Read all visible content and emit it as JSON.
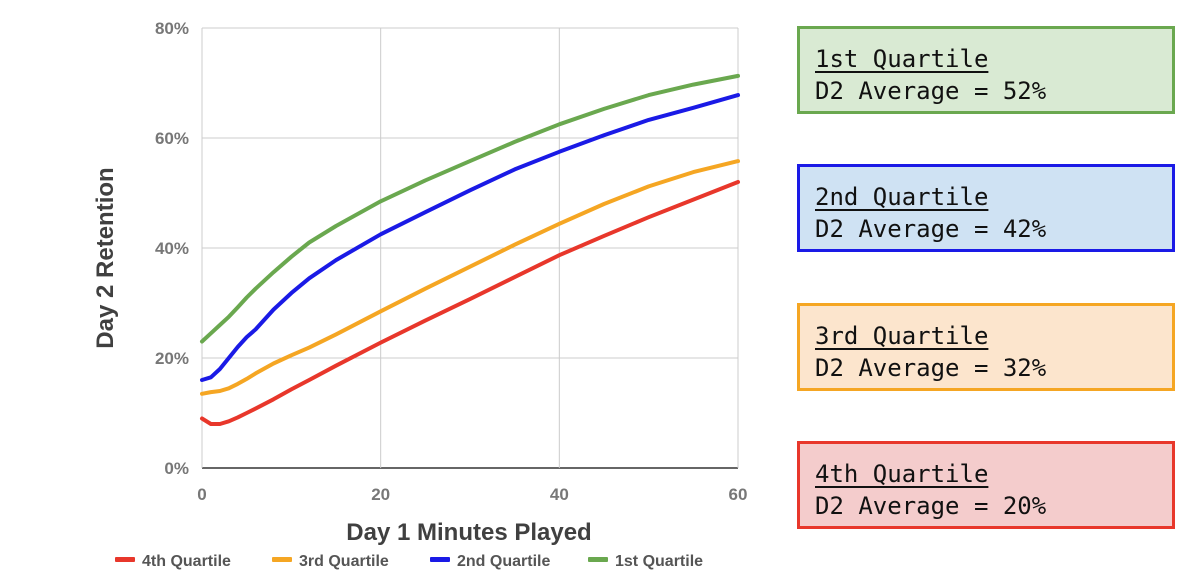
{
  "chart_data": {
    "type": "line",
    "xlabel": "Day 1 Minutes Played",
    "ylabel": "Day 2 Retention",
    "xlim": [
      0,
      60
    ],
    "ylim": [
      0,
      80
    ],
    "x_ticks": [
      "0",
      "20",
      "40",
      "60"
    ],
    "y_ticks": [
      "0%",
      "20%",
      "40%",
      "60%",
      "80%"
    ],
    "grid": true,
    "legend_position": "bottom",
    "x": [
      0,
      1,
      2,
      3,
      4,
      5,
      6,
      8,
      10,
      12,
      15,
      20,
      25,
      30,
      35,
      40,
      45,
      50,
      55,
      60
    ],
    "series": [
      {
        "name": "4th Quartile",
        "color": "#e8372b",
        "values": [
          9,
          8,
          8,
          8.5,
          9.2,
          10,
          10.8,
          12.5,
          14.3,
          16,
          18.6,
          22.8,
          26.8,
          30.7,
          34.7,
          38.7,
          42.2,
          45.6,
          48.8,
          52
        ]
      },
      {
        "name": "3rd Quartile",
        "color": "#f5a623",
        "values": [
          13.5,
          13.8,
          14,
          14.5,
          15.3,
          16.2,
          17.2,
          19,
          20.5,
          21.9,
          24.3,
          28.5,
          32.6,
          36.6,
          40.6,
          44.4,
          48,
          51.2,
          53.8,
          55.8
        ]
      },
      {
        "name": "2nd Quartile",
        "color": "#1a1ae6",
        "values": [
          16,
          16.5,
          18,
          20,
          22,
          23.8,
          25.2,
          28.8,
          31.8,
          34.5,
          37.8,
          42.5,
          46.5,
          50.5,
          54.3,
          57.5,
          60.5,
          63.3,
          65.5,
          67.8
        ]
      },
      {
        "name": "1st Quartile",
        "color": "#6aa84f",
        "values": [
          23,
          24.5,
          26,
          27.5,
          29.2,
          31,
          32.6,
          35.6,
          38.4,
          41,
          44,
          48.5,
          52.3,
          55.8,
          59.3,
          62.5,
          65.3,
          67.8,
          69.7,
          71.3
        ]
      }
    ]
  },
  "summary_boxes": [
    {
      "title": "1st Quartile",
      "average": "D2 Average = 52%",
      "border": "#6aa84f",
      "fill": "#d9ead3"
    },
    {
      "title": "2nd Quartile",
      "average": "D2 Average = 42%",
      "border": "#1a1ae6",
      "fill": "#cfe2f3"
    },
    {
      "title": "3rd Quartile",
      "average": "D2 Average = 32%",
      "border": "#f5a623",
      "fill": "#fce5cd"
    },
    {
      "title": "4th Quartile",
      "average": "D2 Average = 20%",
      "border": "#e8372b",
      "fill": "#f4cccc"
    }
  ]
}
